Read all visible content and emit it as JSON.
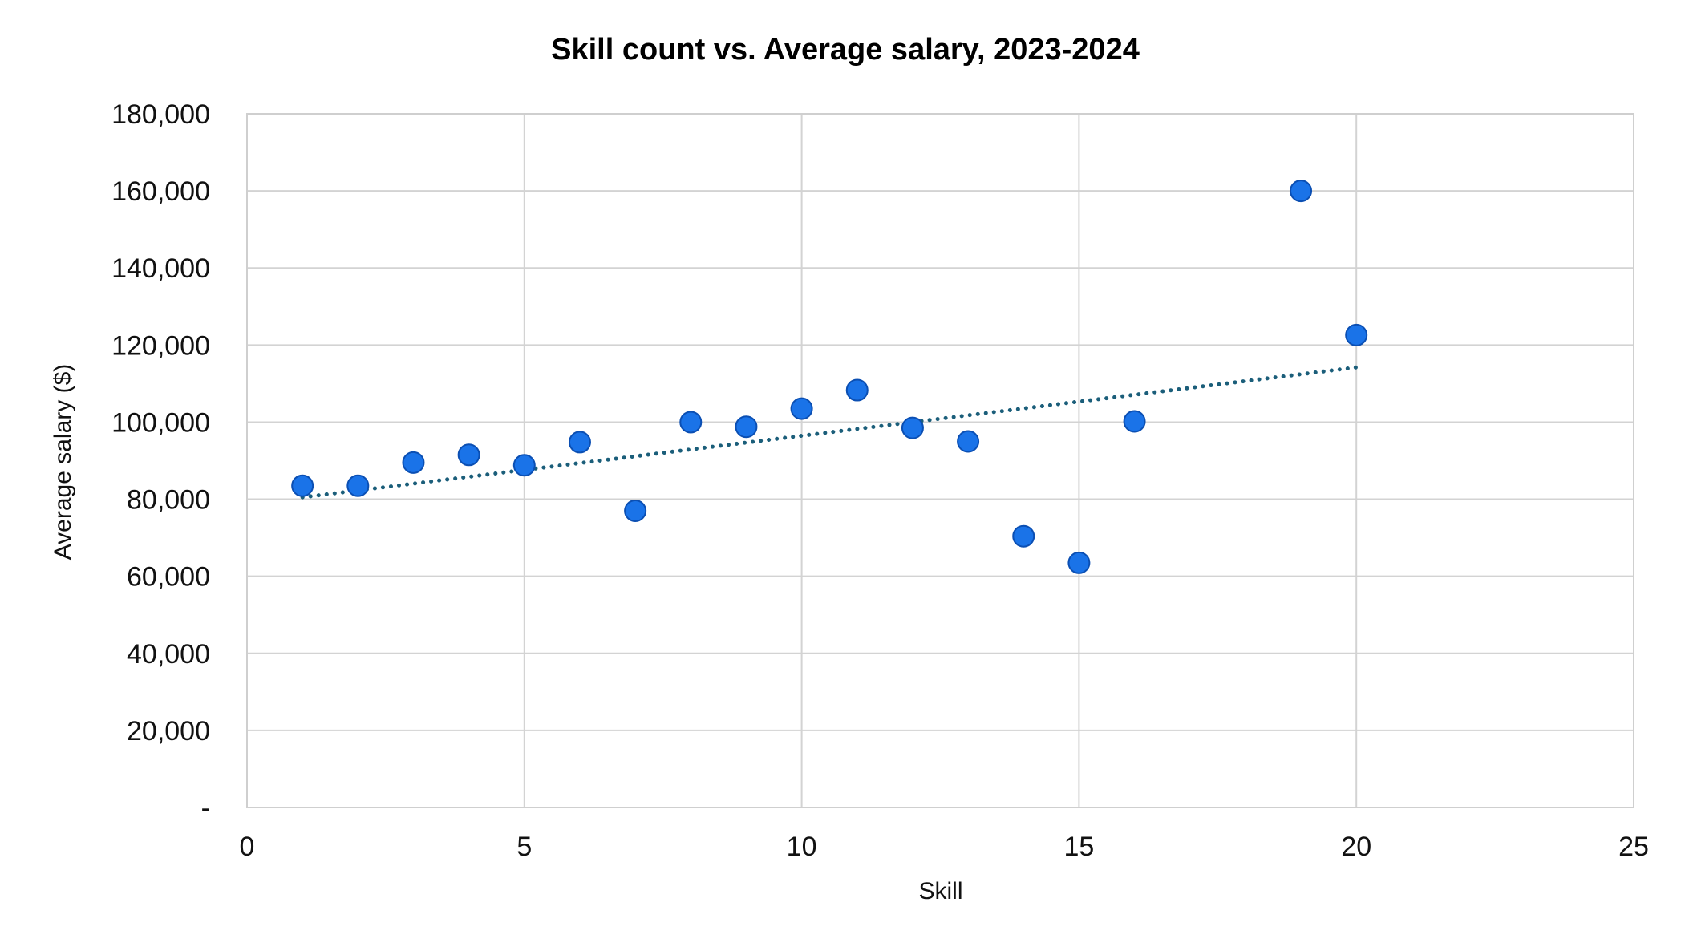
{
  "chart_data": {
    "type": "scatter",
    "title": "Skill count vs. Average salary, 2023-2024",
    "xlabel": "Skill",
    "ylabel": "Average salary ($)",
    "xlim": [
      0,
      25
    ],
    "ylim": [
      0,
      180000
    ],
    "x_ticks": [
      0,
      5,
      10,
      15,
      20,
      25
    ],
    "x_tick_labels": [
      "0",
      "5",
      "10",
      "15",
      "20",
      "25"
    ],
    "y_ticks": [
      0,
      20000,
      40000,
      60000,
      80000,
      100000,
      120000,
      140000,
      160000,
      180000
    ],
    "y_tick_labels": [
      "-",
      "20,000",
      "40,000",
      "60,000",
      "80,000",
      "100,000",
      "120,000",
      "140,000",
      "160,000",
      "180,000"
    ],
    "grid": true,
    "legend": "none",
    "series": [
      {
        "color": "#1a73e8",
        "points": [
          {
            "x": 1,
            "y": 83500
          },
          {
            "x": 2,
            "y": 83500
          },
          {
            "x": 3,
            "y": 89500
          },
          {
            "x": 4,
            "y": 91500
          },
          {
            "x": 5,
            "y": 88800
          },
          {
            "x": 6,
            "y": 94800
          },
          {
            "x": 7,
            "y": 77000
          },
          {
            "x": 8,
            "y": 100000
          },
          {
            "x": 9,
            "y": 98800
          },
          {
            "x": 10,
            "y": 103500
          },
          {
            "x": 11,
            "y": 108300
          },
          {
            "x": 12,
            "y": 98500
          },
          {
            "x": 13,
            "y": 95000
          },
          {
            "x": 14,
            "y": 70400
          },
          {
            "x": 15,
            "y": 63500
          },
          {
            "x": 16,
            "y": 100200
          },
          {
            "x": 19,
            "y": 160000
          },
          {
            "x": 20,
            "y": 122600
          }
        ]
      }
    ],
    "trendline": {
      "style": "dotted",
      "color": "#1b5e7a",
      "x_start": 1,
      "y_start": 80500,
      "x_end": 20,
      "y_end": 114200
    }
  }
}
